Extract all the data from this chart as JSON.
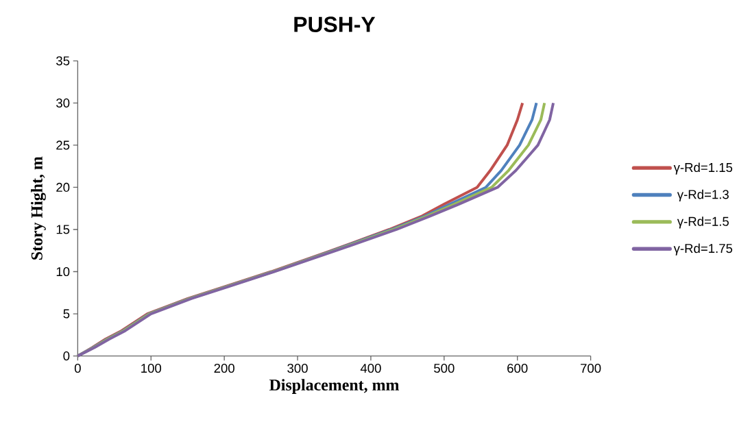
{
  "chart_data": {
    "type": "line",
    "title": "PUSH-Y",
    "xlabel": "Displacement, mm",
    "ylabel": "Story Hight, m",
    "xlim": [
      0,
      700
    ],
    "xticks": [
      0,
      100,
      200,
      300,
      400,
      500,
      600,
      700
    ],
    "ylim": [
      0,
      35
    ],
    "yticks": [
      0,
      5,
      10,
      15,
      20,
      25,
      30,
      35
    ],
    "grid": false,
    "legend": "right",
    "marker": "none",
    "line_style": "solid",
    "series": [
      {
        "name": "γ-Rd=1.15",
        "color": "#c0504d",
        "x": [
          0,
          20,
          38,
          60,
          95,
          150,
          200,
          264,
          340,
          425,
          470,
          500,
          545,
          563,
          586,
          600,
          607
        ],
        "values": [
          0,
          1,
          2,
          3,
          5,
          6.8,
          8.2,
          10,
          12.3,
          15,
          16.6,
          18,
          20,
          22,
          25,
          28,
          30
        ]
      },
      {
        "name": "γ-Rd=1.3",
        "color": "#4f81bd",
        "x": [
          0,
          21,
          40,
          62,
          97,
          152,
          202,
          266,
          342,
          428,
          474,
          508,
          557,
          578,
          603,
          620,
          626
        ],
        "values": [
          0,
          1,
          2,
          3,
          5,
          6.8,
          8.2,
          10,
          12.3,
          15,
          16.6,
          18,
          20,
          22,
          25,
          28,
          30
        ]
      },
      {
        "name": "γ-Rd=1.5",
        "color": "#9bbb59",
        "x": [
          0,
          22,
          41,
          63,
          98,
          153,
          203,
          267,
          344,
          431,
          477,
          514,
          565,
          588,
          615,
          632,
          637
        ],
        "values": [
          0,
          1,
          2,
          3,
          5,
          6.8,
          8.2,
          10,
          12.3,
          15,
          16.6,
          18,
          20,
          22,
          25,
          28,
          30
        ]
      },
      {
        "name": "γ-Rd=1.75",
        "color": "#8064a2",
        "x": [
          0,
          23,
          43,
          65,
          100,
          155,
          205,
          268,
          346,
          435,
          481,
          520,
          573,
          598,
          628,
          644,
          649
        ],
        "values": [
          0,
          1,
          2,
          3,
          5,
          6.8,
          8.2,
          10,
          12.3,
          15,
          16.6,
          18,
          20,
          22,
          25,
          28,
          30
        ]
      }
    ]
  }
}
